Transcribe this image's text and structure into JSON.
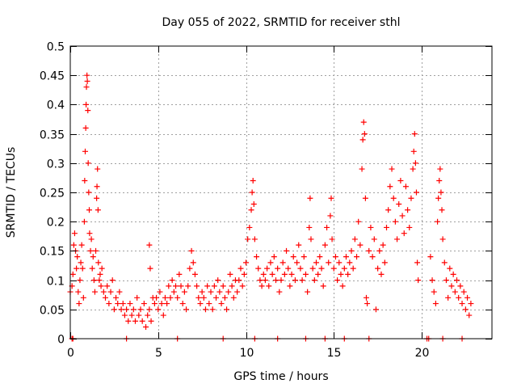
{
  "chart_data": {
    "type": "scatter",
    "title": "Day 055 of 2022, SRMTID for receiver sthl",
    "xlabel": "GPS time / hours",
    "ylabel": "SRMTID / TECUs",
    "xlim": [
      0,
      24.0
    ],
    "ylim": [
      0,
      0.5
    ],
    "x_ticks": [
      0,
      5,
      10,
      15,
      20
    ],
    "x_tick_labels": [
      "0",
      "5",
      "10",
      "15",
      "20"
    ],
    "y_ticks": [
      0,
      0.05,
      0.1,
      0.15,
      0.2,
      0.25,
      0.3,
      0.35,
      0.4,
      0.45,
      0.5
    ],
    "y_tick_labels": [
      "0",
      "0.05",
      "0.1",
      "0.15",
      "0.2",
      "0.25",
      "0.3",
      "0.35",
      "0.4",
      "0.45",
      "0.5"
    ],
    "grid": true,
    "marker": "+",
    "color": "#ff0000",
    "series": [
      {
        "points": [
          [
            0.0,
            0.08
          ],
          [
            0.1,
            0.09
          ],
          [
            0.15,
            0.11
          ],
          [
            0.2,
            0.16
          ],
          [
            0.25,
            0.18
          ],
          [
            0.3,
            0.15
          ],
          [
            0.35,
            0.12
          ],
          [
            0.4,
            0.14
          ],
          [
            0.45,
            0.08
          ],
          [
            0.5,
            0.06
          ],
          [
            0.55,
            0.1
          ],
          [
            0.6,
            0.13
          ],
          [
            0.65,
            0.16
          ],
          [
            0.7,
            0.12
          ],
          [
            0.75,
            0.07
          ],
          [
            0.8,
            0.2
          ],
          [
            0.82,
            0.27
          ],
          [
            0.85,
            0.32
          ],
          [
            0.88,
            0.36
          ],
          [
            0.9,
            0.4
          ],
          [
            0.92,
            0.43
          ],
          [
            0.95,
            0.45
          ],
          [
            0.97,
            0.44
          ],
          [
            1.0,
            0.39
          ],
          [
            1.02,
            0.3
          ],
          [
            1.05,
            0.25
          ],
          [
            1.08,
            0.22
          ],
          [
            1.1,
            0.18
          ],
          [
            1.15,
            0.15
          ],
          [
            1.2,
            0.17
          ],
          [
            1.25,
            0.12
          ],
          [
            1.3,
            0.14
          ],
          [
            1.35,
            0.1
          ],
          [
            1.4,
            0.08
          ],
          [
            1.45,
            0.15
          ],
          [
            1.5,
            0.24
          ],
          [
            1.52,
            0.26
          ],
          [
            1.55,
            0.29
          ],
          [
            1.58,
            0.22
          ],
          [
            1.6,
            0.13
          ],
          [
            1.65,
            0.1
          ],
          [
            1.7,
            0.11
          ],
          [
            1.75,
            0.09
          ],
          [
            1.8,
            0.12
          ],
          [
            1.9,
            0.08
          ],
          [
            2.0,
            0.07
          ],
          [
            2.1,
            0.09
          ],
          [
            2.2,
            0.06
          ],
          [
            2.3,
            0.08
          ],
          [
            2.4,
            0.1
          ],
          [
            2.5,
            0.05
          ],
          [
            2.6,
            0.07
          ],
          [
            2.7,
            0.06
          ],
          [
            2.8,
            0.08
          ],
          [
            2.9,
            0.05
          ],
          [
            3.0,
            0.06
          ],
          [
            3.1,
            0.04
          ],
          [
            3.2,
            0.05
          ],
          [
            3.3,
            0.03
          ],
          [
            3.4,
            0.06
          ],
          [
            3.5,
            0.04
          ],
          [
            3.6,
            0.05
          ],
          [
            3.7,
            0.03
          ],
          [
            3.8,
            0.07
          ],
          [
            3.9,
            0.04
          ],
          [
            4.0,
            0.05
          ],
          [
            4.1,
            0.03
          ],
          [
            4.2,
            0.06
          ],
          [
            4.3,
            0.02
          ],
          [
            4.4,
            0.04
          ],
          [
            4.5,
            0.05
          ],
          [
            4.6,
            0.03
          ],
          [
            4.7,
            0.07
          ],
          [
            4.5,
            0.16
          ],
          [
            4.55,
            0.12
          ],
          [
            4.8,
            0.06
          ],
          [
            4.9,
            0.07
          ],
          [
            5.0,
            0.05
          ],
          [
            5.1,
            0.08
          ],
          [
            5.2,
            0.06
          ],
          [
            5.3,
            0.04
          ],
          [
            5.4,
            0.07
          ],
          [
            5.5,
            0.06
          ],
          [
            5.6,
            0.09
          ],
          [
            5.7,
            0.07
          ],
          [
            5.8,
            0.1
          ],
          [
            5.9,
            0.08
          ],
          [
            6.0,
            0.09
          ],
          [
            6.1,
            0.07
          ],
          [
            6.2,
            0.11
          ],
          [
            6.3,
            0.09
          ],
          [
            6.4,
            0.06
          ],
          [
            6.5,
            0.08
          ],
          [
            6.6,
            0.05
          ],
          [
            6.7,
            0.09
          ],
          [
            6.8,
            0.12
          ],
          [
            6.9,
            0.15
          ],
          [
            7.0,
            0.13
          ],
          [
            7.1,
            0.11
          ],
          [
            7.2,
            0.09
          ],
          [
            7.3,
            0.07
          ],
          [
            7.4,
            0.06
          ],
          [
            7.5,
            0.08
          ],
          [
            7.6,
            0.07
          ],
          [
            7.7,
            0.05
          ],
          [
            7.8,
            0.09
          ],
          [
            7.9,
            0.06
          ],
          [
            8.0,
            0.08
          ],
          [
            8.1,
            0.05
          ],
          [
            8.2,
            0.09
          ],
          [
            8.3,
            0.07
          ],
          [
            8.4,
            0.1
          ],
          [
            8.5,
            0.08
          ],
          [
            8.6,
            0.06
          ],
          [
            8.7,
            0.09
          ],
          [
            8.8,
            0.07
          ],
          [
            8.9,
            0.05
          ],
          [
            9.0,
            0.08
          ],
          [
            9.1,
            0.11
          ],
          [
            9.2,
            0.09
          ],
          [
            9.3,
            0.07
          ],
          [
            9.4,
            0.1
          ],
          [
            9.5,
            0.08
          ],
          [
            9.6,
            0.1
          ],
          [
            9.7,
            0.12
          ],
          [
            9.8,
            0.09
          ],
          [
            9.9,
            0.11
          ],
          [
            10.0,
            0.13
          ],
          [
            10.1,
            0.17
          ],
          [
            10.2,
            0.19
          ],
          [
            10.3,
            0.22
          ],
          [
            10.35,
            0.25
          ],
          [
            10.4,
            0.27
          ],
          [
            10.45,
            0.23
          ],
          [
            10.5,
            0.17
          ],
          [
            10.6,
            0.14
          ],
          [
            10.7,
            0.12
          ],
          [
            10.8,
            0.1
          ],
          [
            10.9,
            0.09
          ],
          [
            11.0,
            0.11
          ],
          [
            11.1,
            0.1
          ],
          [
            11.2,
            0.12
          ],
          [
            11.3,
            0.09
          ],
          [
            11.4,
            0.13
          ],
          [
            11.5,
            0.11
          ],
          [
            11.6,
            0.14
          ],
          [
            11.7,
            0.1
          ],
          [
            11.8,
            0.12
          ],
          [
            11.9,
            0.08
          ],
          [
            12.0,
            0.1
          ],
          [
            12.1,
            0.13
          ],
          [
            12.2,
            0.11
          ],
          [
            12.3,
            0.15
          ],
          [
            12.4,
            0.12
          ],
          [
            12.5,
            0.09
          ],
          [
            12.6,
            0.11
          ],
          [
            12.7,
            0.14
          ],
          [
            12.8,
            0.1
          ],
          [
            12.9,
            0.13
          ],
          [
            13.0,
            0.16
          ],
          [
            13.1,
            0.12
          ],
          [
            13.2,
            0.1
          ],
          [
            13.3,
            0.14
          ],
          [
            13.4,
            0.11
          ],
          [
            13.5,
            0.08
          ],
          [
            13.6,
            0.19
          ],
          [
            13.65,
            0.24
          ],
          [
            13.7,
            0.17
          ],
          [
            13.8,
            0.12
          ],
          [
            13.9,
            0.1
          ],
          [
            14.0,
            0.13
          ],
          [
            14.1,
            0.11
          ],
          [
            14.2,
            0.14
          ],
          [
            14.3,
            0.12
          ],
          [
            14.4,
            0.09
          ],
          [
            14.5,
            0.16
          ],
          [
            14.6,
            0.19
          ],
          [
            14.7,
            0.13
          ],
          [
            14.8,
            0.21
          ],
          [
            14.85,
            0.24
          ],
          [
            14.9,
            0.17
          ],
          [
            15.0,
            0.12
          ],
          [
            15.1,
            0.14
          ],
          [
            15.2,
            0.1
          ],
          [
            15.3,
            0.13
          ],
          [
            15.4,
            0.11
          ],
          [
            15.5,
            0.09
          ],
          [
            15.6,
            0.12
          ],
          [
            15.7,
            0.14
          ],
          [
            15.8,
            0.11
          ],
          [
            15.9,
            0.13
          ],
          [
            16.0,
            0.15
          ],
          [
            16.1,
            0.12
          ],
          [
            16.2,
            0.17
          ],
          [
            16.3,
            0.14
          ],
          [
            16.4,
            0.2
          ],
          [
            16.5,
            0.16
          ],
          [
            16.6,
            0.29
          ],
          [
            16.65,
            0.34
          ],
          [
            16.7,
            0.37
          ],
          [
            16.75,
            0.35
          ],
          [
            16.8,
            0.24
          ],
          [
            16.85,
            0.07
          ],
          [
            16.9,
            0.06
          ],
          [
            17.0,
            0.15
          ],
          [
            17.1,
            0.19
          ],
          [
            17.2,
            0.14
          ],
          [
            17.3,
            0.17
          ],
          [
            17.4,
            0.05
          ],
          [
            17.5,
            0.12
          ],
          [
            17.6,
            0.15
          ],
          [
            17.7,
            0.11
          ],
          [
            17.8,
            0.16
          ],
          [
            17.9,
            0.13
          ],
          [
            18.0,
            0.19
          ],
          [
            18.1,
            0.22
          ],
          [
            18.2,
            0.26
          ],
          [
            18.3,
            0.29
          ],
          [
            18.4,
            0.24
          ],
          [
            18.5,
            0.2
          ],
          [
            18.6,
            0.17
          ],
          [
            18.7,
            0.23
          ],
          [
            18.8,
            0.27
          ],
          [
            18.9,
            0.21
          ],
          [
            19.0,
            0.18
          ],
          [
            19.1,
            0.26
          ],
          [
            19.2,
            0.22
          ],
          [
            19.3,
            0.19
          ],
          [
            19.4,
            0.24
          ],
          [
            19.5,
            0.29
          ],
          [
            19.55,
            0.32
          ],
          [
            19.6,
            0.35
          ],
          [
            19.65,
            0.3
          ],
          [
            19.7,
            0.25
          ],
          [
            19.75,
            0.13
          ],
          [
            19.8,
            0.1
          ],
          [
            20.5,
            0.14
          ],
          [
            20.6,
            0.1
          ],
          [
            20.7,
            0.08
          ],
          [
            20.8,
            0.06
          ],
          [
            20.9,
            0.2
          ],
          [
            20.95,
            0.24
          ],
          [
            21.0,
            0.27
          ],
          [
            21.05,
            0.29
          ],
          [
            21.1,
            0.25
          ],
          [
            21.15,
            0.22
          ],
          [
            21.2,
            0.17
          ],
          [
            21.3,
            0.13
          ],
          [
            21.4,
            0.1
          ],
          [
            21.5,
            0.07
          ],
          [
            21.6,
            0.12
          ],
          [
            21.7,
            0.09
          ],
          [
            21.8,
            0.11
          ],
          [
            21.9,
            0.08
          ],
          [
            22.0,
            0.1
          ],
          [
            22.1,
            0.07
          ],
          [
            22.2,
            0.09
          ],
          [
            22.3,
            0.06
          ],
          [
            22.4,
            0.08
          ],
          [
            22.5,
            0.05
          ],
          [
            22.6,
            0.07
          ],
          [
            22.7,
            0.04
          ],
          [
            22.8,
            0.06
          ]
        ]
      }
    ],
    "zero_markers_x": [
      0.1,
      0.15,
      3.2,
      6.1,
      8.7,
      10.5,
      11.8,
      13.4,
      14.5,
      15.6,
      17.0,
      20.3,
      20.4,
      21.2,
      22.3
    ]
  }
}
